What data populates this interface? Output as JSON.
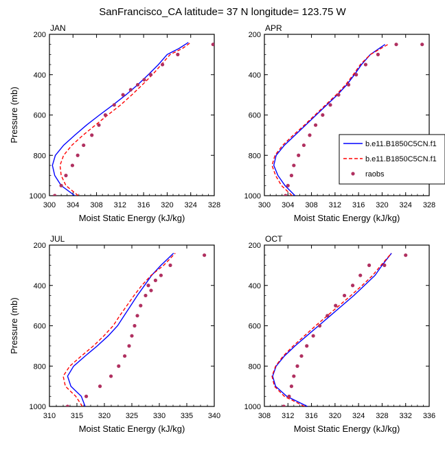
{
  "figure": {
    "title": "SanFrancisco_CA  latitude= 37 N longitude= 123.75 W"
  },
  "legend": {
    "entries": [
      {
        "label": "b.e11.B1850C5CN.f1",
        "color": "#0000ff",
        "style": "solid"
      },
      {
        "label": "b.e11.B1850C5CN.f1",
        "color": "#ff0000",
        "style": "dashed"
      },
      {
        "label": "raobs",
        "color": "#b03060",
        "style": "marker"
      }
    ],
    "placement": "right of APR panel"
  },
  "chart_data": [
    {
      "type": "line",
      "panel": "JAN",
      "xlabel": "Moist Static Energy (kJ/kg)",
      "ylabel": "Pressure (mb)",
      "xlim": [
        300,
        328
      ],
      "ylim": [
        1000,
        200
      ],
      "xticks": [
        300,
        304,
        308,
        312,
        316,
        320,
        324,
        328
      ],
      "yticks": [
        200,
        400,
        600,
        800,
        1000
      ],
      "grid": false,
      "series": [
        {
          "name": "b.e11.B1850C5CN.f1",
          "x": [
            304.3,
            302.0,
            300.9,
            300.5,
            301.0,
            302.4,
            304.3,
            306.3,
            308.5,
            310.8,
            313.0,
            315.0,
            316.8,
            318.5,
            320.0,
            322.0,
            323.6
          ],
          "y": [
            1000,
            950,
            900,
            850,
            800,
            750,
            700,
            650,
            600,
            550,
            500,
            450,
            400,
            350,
            300,
            270,
            240
          ]
        },
        {
          "name": "b.e11.B1850C5CN.f1",
          "x": [
            304.9,
            302.8,
            302.0,
            301.8,
            302.4,
            303.8,
            305.7,
            307.8,
            309.9,
            312.1,
            314.0,
            315.8,
            317.5,
            319.0,
            320.5,
            322.6,
            324.0
          ],
          "y": [
            1000,
            950,
            900,
            850,
            800,
            750,
            700,
            650,
            600,
            550,
            500,
            450,
            400,
            350,
            300,
            270,
            240
          ]
        },
        {
          "name": "raobs",
          "x": [
            300.9,
            302.0,
            302.8,
            303.9,
            304.8,
            305.8,
            307.2,
            308.4,
            309.5,
            311.0,
            312.5,
            313.8,
            315.0,
            316.1,
            317.2,
            319.2,
            321.8,
            327.8
          ],
          "y": [
            1000,
            950,
            900,
            850,
            800,
            750,
            700,
            650,
            600,
            550,
            500,
            475,
            450,
            425,
            400,
            350,
            300,
            250
          ]
        }
      ]
    },
    {
      "type": "line",
      "panel": "APR",
      "xlabel": "Moist Static Energy (kJ/kg)",
      "ylabel": "",
      "xlim": [
        300,
        328
      ],
      "ylim": [
        1000,
        200
      ],
      "xticks": [
        300,
        304,
        308,
        312,
        316,
        320,
        324,
        328
      ],
      "yticks": [
        200,
        400,
        600,
        800,
        1000
      ],
      "grid": false,
      "series": [
        {
          "name": "b.e11.B1850C5CN.f1",
          "x": [
            305.2,
            303.5,
            302.3,
            301.6,
            302.0,
            303.4,
            305.2,
            307.0,
            308.8,
            310.6,
            312.4,
            314.0,
            315.3,
            316.5,
            318.0,
            320.5
          ],
          "y": [
            1000,
            950,
            900,
            850,
            800,
            750,
            700,
            650,
            600,
            550,
            500,
            450,
            400,
            350,
            300,
            250
          ]
        },
        {
          "name": "b.e11.B1850C5CN.f1",
          "x": [
            304.7,
            302.9,
            301.9,
            301.3,
            301.8,
            303.1,
            304.9,
            306.8,
            308.6,
            310.4,
            312.2,
            313.8,
            315.1,
            316.3,
            318.0,
            321.0
          ],
          "y": [
            1000,
            950,
            900,
            850,
            800,
            750,
            700,
            650,
            600,
            550,
            500,
            450,
            400,
            350,
            300,
            250
          ]
        },
        {
          "name": "raobs",
          "x": [
            303.6,
            304.0,
            304.6,
            305.0,
            305.8,
            306.7,
            307.7,
            308.7,
            309.9,
            311.2,
            312.6,
            314.3,
            315.6,
            317.2,
            319.3,
            322.4,
            326.8
          ],
          "y": [
            1000,
            950,
            900,
            850,
            800,
            750,
            700,
            650,
            600,
            550,
            500,
            450,
            400,
            350,
            300,
            250,
            250
          ]
        }
      ]
    },
    {
      "type": "line",
      "panel": "JUL",
      "xlabel": "Moist Static Energy (kJ/kg)",
      "ylabel": "Pressure (mb)",
      "xlim": [
        310,
        340
      ],
      "ylim": [
        1000,
        200
      ],
      "xticks": [
        310,
        315,
        320,
        325,
        330,
        335,
        340
      ],
      "yticks": [
        200,
        400,
        600,
        800,
        1000
      ],
      "grid": false,
      "series": [
        {
          "name": "b.e11.B1850C5CN.f1",
          "x": [
            316.5,
            315.8,
            313.9,
            313.3,
            314.4,
            316.5,
            318.7,
            320.7,
            322.4,
            323.6,
            324.8,
            326.0,
            327.3,
            328.6,
            330.3,
            332.6
          ],
          "y": [
            1000,
            950,
            900,
            850,
            800,
            750,
            700,
            650,
            600,
            550,
            500,
            450,
            400,
            350,
            300,
            240
          ]
        },
        {
          "name": "b.e11.B1850C5CN.f1",
          "x": [
            316.0,
            314.8,
            312.9,
            312.5,
            313.7,
            315.8,
            318.0,
            319.9,
            321.6,
            322.8,
            324.1,
            325.4,
            326.8,
            328.5,
            330.8,
            332.9
          ],
          "y": [
            1000,
            950,
            900,
            850,
            800,
            750,
            700,
            650,
            600,
            550,
            500,
            450,
            400,
            350,
            300,
            240
          ]
        },
        {
          "name": "raobs",
          "x": [
            313.3,
            316.7,
            319.2,
            321.2,
            322.6,
            323.7,
            324.5,
            325.0,
            325.5,
            326.0,
            326.6,
            327.5,
            328.0,
            328.5,
            329.3,
            330.3,
            332.0,
            338.2
          ],
          "y": [
            1000,
            950,
            900,
            850,
            800,
            750,
            700,
            650,
            600,
            550,
            500,
            450,
            400,
            425,
            375,
            350,
            300,
            250
          ]
        }
      ]
    },
    {
      "type": "line",
      "panel": "OCT",
      "xlabel": "Moist Static Energy (kJ/kg)",
      "ylabel": "",
      "xlim": [
        308,
        336
      ],
      "ylim": [
        1000,
        200
      ],
      "xticks": [
        308,
        312,
        316,
        320,
        324,
        328,
        332,
        336
      ],
      "yticks": [
        200,
        400,
        600,
        800,
        1000
      ],
      "grid": false,
      "series": [
        {
          "name": "b.e11.B1850C5CN.f1",
          "x": [
            315.3,
            311.8,
            309.9,
            309.4,
            310.0,
            311.4,
            313.2,
            315.2,
            317.2,
            319.2,
            321.2,
            323.2,
            325.0,
            326.8,
            328.0,
            329.6
          ],
          "y": [
            1000,
            950,
            900,
            850,
            800,
            750,
            700,
            650,
            600,
            550,
            500,
            450,
            400,
            350,
            300,
            240
          ]
        },
        {
          "name": "b.e11.B1850C5CN.f1",
          "x": [
            314.8,
            311.4,
            309.7,
            309.3,
            309.9,
            311.2,
            312.9,
            314.8,
            316.7,
            318.7,
            320.7,
            322.7,
            324.6,
            326.4,
            327.8,
            329.6
          ],
          "y": [
            1000,
            950,
            900,
            850,
            800,
            750,
            700,
            650,
            600,
            550,
            500,
            450,
            400,
            350,
            300,
            240
          ]
        },
        {
          "name": "raobs",
          "x": [
            311.3,
            312.2,
            312.6,
            313.0,
            313.6,
            314.3,
            315.2,
            316.3,
            317.4,
            318.7,
            320.1,
            321.6,
            323.0,
            324.3,
            325.8,
            328.4,
            332.0
          ],
          "y": [
            1000,
            950,
            900,
            850,
            800,
            750,
            700,
            650,
            600,
            550,
            500,
            450,
            400,
            350,
            300,
            300,
            250
          ]
        }
      ]
    }
  ]
}
